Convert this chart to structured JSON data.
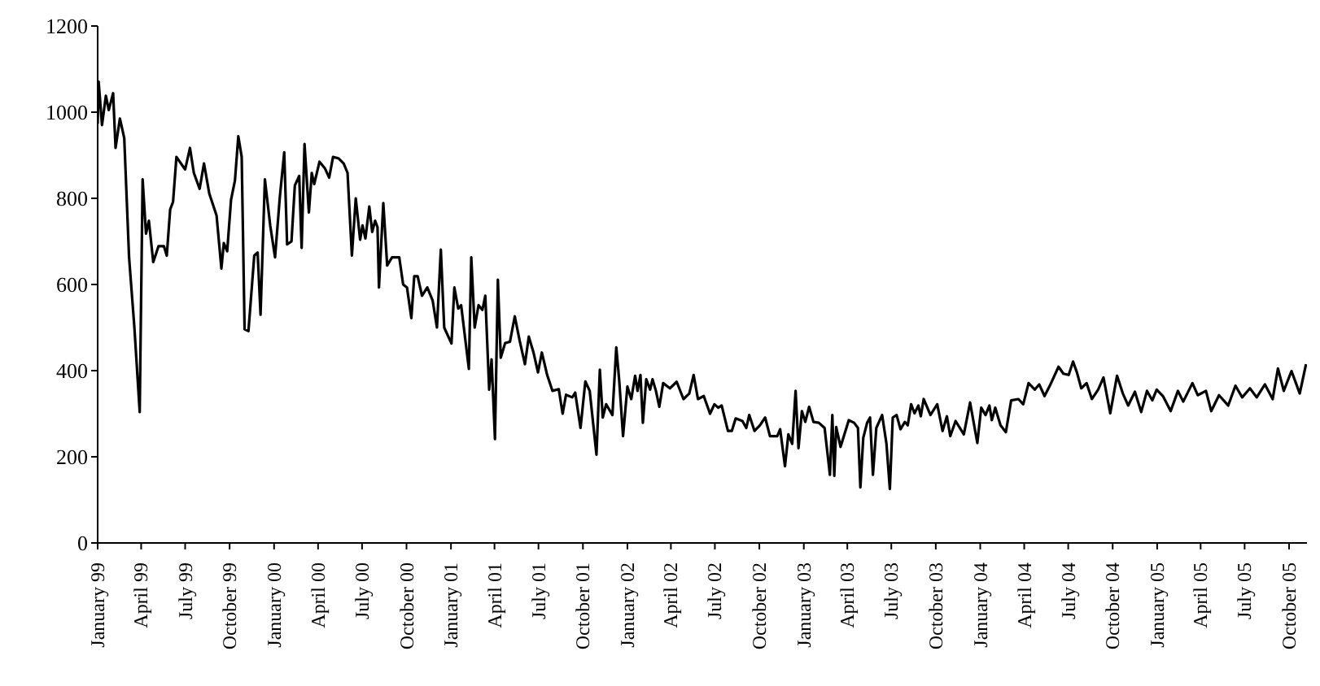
{
  "chart_data": {
    "type": "line",
    "xlim": [
      "1999-01-01",
      "2005-11-07"
    ],
    "ylim": [
      0,
      1200
    ],
    "yticks": [
      0,
      200,
      400,
      600,
      800,
      1000,
      1200
    ],
    "xticks": [
      {
        "value": "1999-01-01",
        "label": "January 99"
      },
      {
        "value": "1999-04-01",
        "label": "April 99"
      },
      {
        "value": "1999-07-01",
        "label": "July 99"
      },
      {
        "value": "1999-10-01",
        "label": "October 99"
      },
      {
        "value": "2000-01-01",
        "label": "January 00"
      },
      {
        "value": "2000-04-01",
        "label": "April 00"
      },
      {
        "value": "2000-07-01",
        "label": "July 00"
      },
      {
        "value": "2000-10-01",
        "label": "October 00"
      },
      {
        "value": "2001-01-01",
        "label": "January 01"
      },
      {
        "value": "2001-04-01",
        "label": "April 01"
      },
      {
        "value": "2001-07-01",
        "label": "July 01"
      },
      {
        "value": "2001-10-01",
        "label": "October 01"
      },
      {
        "value": "2002-01-01",
        "label": "January 02"
      },
      {
        "value": "2002-04-01",
        "label": "April 02"
      },
      {
        "value": "2002-07-01",
        "label": "July 02"
      },
      {
        "value": "2002-10-01",
        "label": "October 02"
      },
      {
        "value": "2003-01-01",
        "label": "January 03"
      },
      {
        "value": "2003-04-01",
        "label": "April 03"
      },
      {
        "value": "2003-07-01",
        "label": "July 03"
      },
      {
        "value": "2003-10-01",
        "label": "October 03"
      },
      {
        "value": "2004-01-01",
        "label": "January 04"
      },
      {
        "value": "2004-04-01",
        "label": "April 04"
      },
      {
        "value": "2004-07-01",
        "label": "July 04"
      },
      {
        "value": "2004-10-01",
        "label": "October 04"
      },
      {
        "value": "2005-01-01",
        "label": "January 05"
      },
      {
        "value": "2005-04-01",
        "label": "April 05"
      },
      {
        "value": "2005-07-01",
        "label": "July 05"
      },
      {
        "value": "2005-10-01",
        "label": "October 05"
      }
    ],
    "grid": false,
    "legend": false,
    "marker": "none",
    "line_style": "solid",
    "x": [
      "1999-01-01",
      "1999-01-03",
      "1999-01-10",
      "1999-01-18",
      "1999-01-24",
      "1999-02-02",
      "1999-02-07",
      "1999-02-16",
      "1999-02-25",
      "1999-03-07",
      "1999-03-18",
      "1999-03-29",
      "1999-04-04",
      "1999-04-11",
      "1999-04-17",
      "1999-04-26",
      "1999-05-07",
      "1999-05-18",
      "1999-05-24",
      "1999-05-31",
      "1999-06-06",
      "1999-06-13",
      "1999-07-01",
      "1999-07-11",
      "1999-07-19",
      "1999-07-31",
      "1999-08-09",
      "1999-08-20",
      "1999-09-04",
      "1999-09-14",
      "1999-09-19",
      "1999-09-26",
      "1999-10-04",
      "1999-10-12",
      "1999-10-19",
      "1999-10-26",
      "1999-11-01",
      "1999-11-09",
      "1999-11-21",
      "1999-11-28",
      "1999-12-04",
      "1999-12-13",
      "1999-12-24",
      "2000-01-03",
      "2000-01-13",
      "2000-01-22",
      "2000-01-28",
      "2000-02-06",
      "2000-02-13",
      "2000-02-22",
      "2000-02-27",
      "2000-03-04",
      "2000-03-13",
      "2000-03-19",
      "2000-03-24",
      "2000-04-04",
      "2000-04-15",
      "2000-04-24",
      "2000-05-02",
      "2000-05-13",
      "2000-05-24",
      "2000-06-01",
      "2000-06-10",
      "2000-06-18",
      "2000-06-27",
      "2000-07-02",
      "2000-07-08",
      "2000-07-16",
      "2000-07-22",
      "2000-07-28",
      "2000-08-02",
      "2000-08-05",
      "2000-08-14",
      "2000-08-22",
      "2000-09-01",
      "2000-09-16",
      "2000-09-24",
      "2000-10-02",
      "2000-10-11",
      "2000-10-17",
      "2000-10-24",
      "2000-11-02",
      "2000-11-13",
      "2000-11-24",
      "2000-12-03",
      "2000-12-11",
      "2000-12-18",
      "2001-01-02",
      "2001-01-08",
      "2001-01-16",
      "2001-01-22",
      "2001-02-07",
      "2001-02-12",
      "2001-02-19",
      "2001-02-27",
      "2001-03-07",
      "2001-03-13",
      "2001-03-21",
      "2001-03-26",
      "2001-04-02",
      "2001-04-08",
      "2001-04-14",
      "2001-04-23",
      "2001-05-03",
      "2001-05-13",
      "2001-05-23",
      "2001-06-03",
      "2001-06-11",
      "2001-06-21",
      "2001-06-30",
      "2001-07-08",
      "2001-07-19",
      "2001-07-30",
      "2001-08-12",
      "2001-08-20",
      "2001-08-27",
      "2001-09-09",
      "2001-09-15",
      "2001-09-26",
      "2001-10-06",
      "2001-10-15",
      "2001-10-29",
      "2001-11-05",
      "2001-11-11",
      "2001-11-18",
      "2001-12-01",
      "2001-12-09",
      "2001-12-15",
      "2001-12-23",
      "2002-01-01",
      "2002-01-09",
      "2002-01-17",
      "2002-01-22",
      "2002-01-28",
      "2002-02-02",
      "2002-02-09",
      "2002-02-17",
      "2002-02-22",
      "2002-03-01",
      "2002-03-08",
      "2002-03-16",
      "2002-03-30",
      "2002-04-13",
      "2002-04-27",
      "2002-05-09",
      "2002-05-18",
      "2002-05-27",
      "2002-06-08",
      "2002-06-21",
      "2002-06-30",
      "2002-07-08",
      "2002-07-15",
      "2002-07-28",
      "2002-08-05",
      "2002-08-13",
      "2002-08-27",
      "2002-09-04",
      "2002-09-10",
      "2002-09-21",
      "2002-10-02",
      "2002-10-13",
      "2002-10-23",
      "2002-11-07",
      "2002-11-13",
      "2002-11-23",
      "2002-11-30",
      "2002-12-08",
      "2002-12-15",
      "2002-12-21",
      "2002-12-28",
      "2003-01-04",
      "2003-01-12",
      "2003-01-21",
      "2003-02-01",
      "2003-02-13",
      "2003-02-24",
      "2003-03-01",
      "2003-03-05",
      "2003-03-09",
      "2003-03-18",
      "2003-04-04",
      "2003-04-15",
      "2003-04-23",
      "2003-04-28",
      "2003-05-04",
      "2003-05-12",
      "2003-05-18",
      "2003-05-24",
      "2003-05-31",
      "2003-06-12",
      "2003-06-21",
      "2003-06-28",
      "2003-07-04",
      "2003-07-12",
      "2003-07-20",
      "2003-07-29",
      "2003-08-04",
      "2003-08-11",
      "2003-08-18",
      "2003-08-26",
      "2003-08-31",
      "2003-09-06",
      "2003-09-20",
      "2003-10-04",
      "2003-10-15",
      "2003-10-24",
      "2003-10-31",
      "2003-11-11",
      "2003-11-28",
      "2003-12-11",
      "2003-12-26",
      "2004-01-03",
      "2004-01-12",
      "2004-01-20",
      "2004-01-25",
      "2004-02-01",
      "2004-02-12",
      "2004-02-23",
      "2004-03-05",
      "2004-03-20",
      "2004-03-30",
      "2004-04-10",
      "2004-04-23",
      "2004-05-02",
      "2004-05-13",
      "2004-05-24",
      "2004-06-11",
      "2004-06-21",
      "2004-07-02",
      "2004-07-11",
      "2004-07-19",
      "2004-07-28",
      "2004-08-08",
      "2004-08-19",
      "2004-09-01",
      "2004-09-12",
      "2004-09-26",
      "2004-10-10",
      "2004-10-22",
      "2004-11-02",
      "2004-11-16",
      "2004-11-29",
      "2004-12-11",
      "2004-12-22",
      "2004-12-31",
      "2005-01-13",
      "2005-01-29",
      "2005-02-13",
      "2005-02-24",
      "2005-03-15",
      "2005-03-26",
      "2005-04-12",
      "2005-04-23",
      "2005-05-09",
      "2005-05-28",
      "2005-06-12",
      "2005-06-26",
      "2005-07-12",
      "2005-07-26",
      "2005-08-12",
      "2005-08-28",
      "2005-09-08",
      "2005-09-20",
      "2005-10-06",
      "2005-10-23",
      "2005-11-05"
    ],
    "series": [
      {
        "color": "#000000",
        "values": [
          973,
          1071,
          970,
          1038,
          1005,
          1044,
          917,
          985,
          940,
          663,
          500,
          304,
          844,
          718,
          748,
          652,
          689,
          689,
          667,
          774,
          792,
          896,
          867,
          917,
          859,
          822,
          881,
          811,
          760,
          637,
          696,
          677,
          797,
          841,
          944,
          896,
          496,
          492,
          667,
          674,
          530,
          844,
          737,
          663,
          804,
          907,
          693,
          700,
          830,
          852,
          685,
          926,
          767,
          859,
          833,
          885,
          870,
          848,
          896,
          893,
          881,
          859,
          667,
          800,
          704,
          737,
          707,
          781,
          722,
          748,
          733,
          593,
          789,
          644,
          663,
          663,
          600,
          593,
          522,
          619,
          619,
          574,
          593,
          563,
          500,
          681,
          500,
          463,
          593,
          544,
          552,
          404,
          663,
          500,
          552,
          541,
          574,
          356,
          426,
          241,
          611,
          430,
          464,
          467,
          526,
          470,
          415,
          479,
          441,
          396,
          442,
          390,
          353,
          357,
          300,
          344,
          338,
          349,
          267,
          375,
          353,
          205,
          402,
          291,
          322,
          297,
          454,
          378,
          248,
          363,
          334,
          388,
          353,
          390,
          279,
          380,
          356,
          380,
          353,
          316,
          371,
          359,
          374,
          334,
          347,
          390,
          334,
          341,
          300,
          322,
          314,
          319,
          260,
          260,
          289,
          283,
          267,
          297,
          260,
          273,
          291,
          248,
          248,
          264,
          178,
          252,
          230,
          353,
          220,
          306,
          281,
          316,
          281,
          279,
          267,
          158,
          297,
          156,
          269,
          223,
          285,
          279,
          267,
          129,
          244,
          279,
          291,
          158,
          267,
          297,
          230,
          125,
          291,
          297,
          264,
          281,
          273,
          322,
          301,
          319,
          294,
          334,
          297,
          322,
          260,
          294,
          248,
          283,
          252,
          326,
          232,
          314,
          297,
          319,
          285,
          314,
          273,
          257,
          331,
          334,
          322,
          371,
          356,
          368,
          341,
          365,
          409,
          393,
          390,
          421,
          396,
          359,
          371,
          334,
          356,
          384,
          301,
          388,
          347,
          319,
          351,
          304,
          353,
          331,
          356,
          341,
          306,
          353,
          328,
          371,
          343,
          353,
          306,
          343,
          319,
          365,
          338,
          359,
          338,
          368,
          334,
          405,
          353,
          399,
          347,
          415
        ]
      }
    ]
  }
}
